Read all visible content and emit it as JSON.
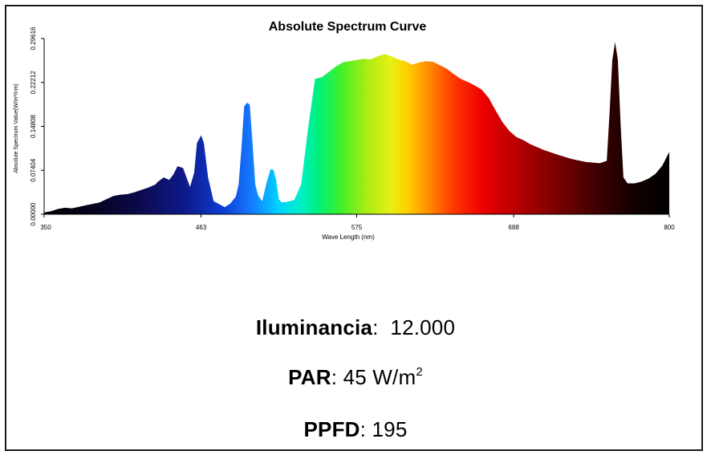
{
  "chart_data": {
    "type": "area",
    "title": "Absolute Spectrum Curve",
    "xlabel": "Wave Length (nm)",
    "ylabel": "Absolute Spectrum Value(W/m²/nm)",
    "xlim": [
      350,
      800
    ],
    "ylim": [
      0,
      0.29616
    ],
    "x_ticks": [
      350,
      463,
      575,
      688,
      800
    ],
    "x_tick_labels": [
      "350",
      "463",
      "575",
      "688",
      "800"
    ],
    "y_ticks": [
      0,
      0.07404,
      0.14808,
      0.22212,
      0.29616
    ],
    "y_tick_labels": [
      "0.00000",
      "0.07404",
      "0.14808",
      "0.22212",
      "0.29616"
    ],
    "grid": false,
    "legend": false,
    "fill": "wavelength-spectrum-gradient",
    "series": [
      {
        "x": [
          350,
          355,
          360,
          365,
          370,
          380,
          390,
          400,
          405,
          410,
          415,
          420,
          425,
          430,
          432,
          436,
          440,
          443,
          446,
          450,
          455,
          458,
          460,
          463,
          465,
          468,
          472,
          476,
          480,
          484,
          488,
          490,
          492,
          494,
          496,
          498,
          500,
          502,
          504,
          507,
          510,
          513,
          515,
          517,
          519,
          521,
          525,
          530,
          535,
          540,
          545,
          550,
          555,
          560,
          565,
          570,
          575,
          580,
          585,
          590,
          595,
          600,
          605,
          610,
          615,
          620,
          625,
          630,
          635,
          640,
          645,
          650,
          655,
          660,
          665,
          670,
          675,
          680,
          685,
          690,
          695,
          700,
          710,
          720,
          730,
          740,
          750,
          755,
          757,
          759,
          761,
          763,
          765,
          767,
          770,
          775,
          780,
          785,
          790,
          795,
          800
        ],
        "y": [
          0.003,
          0.005,
          0.009,
          0.011,
          0.01,
          0.015,
          0.02,
          0.031,
          0.033,
          0.034,
          0.037,
          0.041,
          0.045,
          0.05,
          0.055,
          0.062,
          0.058,
          0.067,
          0.081,
          0.078,
          0.046,
          0.07,
          0.12,
          0.133,
          0.12,
          0.062,
          0.022,
          0.017,
          0.012,
          0.018,
          0.03,
          0.05,
          0.11,
          0.182,
          0.188,
          0.185,
          0.12,
          0.05,
          0.032,
          0.022,
          0.052,
          0.076,
          0.075,
          0.058,
          0.025,
          0.02,
          0.021,
          0.024,
          0.05,
          0.145,
          0.228,
          0.231,
          0.24,
          0.249,
          0.256,
          0.258,
          0.26,
          0.262,
          0.261,
          0.266,
          0.27,
          0.266,
          0.261,
          0.258,
          0.252,
          0.256,
          0.258,
          0.257,
          0.251,
          0.245,
          0.236,
          0.228,
          0.223,
          0.217,
          0.21,
          0.196,
          0.175,
          0.155,
          0.14,
          0.13,
          0.125,
          0.118,
          0.108,
          0.1,
          0.093,
          0.088,
          0.086,
          0.09,
          0.17,
          0.26,
          0.29,
          0.26,
          0.15,
          0.062,
          0.052,
          0.052,
          0.055,
          0.06,
          0.068,
          0.082,
          0.105
        ]
      }
    ]
  },
  "metrics": {
    "iluminancia": {
      "label": "Iluminancia",
      "sep": ":",
      "value": "12.000"
    },
    "par": {
      "label": "PAR",
      "sep": ":",
      "value": "45 W/m",
      "sup": "2"
    },
    "ppfd": {
      "label": "PPFD",
      "sep": ":",
      "value": "195"
    }
  }
}
